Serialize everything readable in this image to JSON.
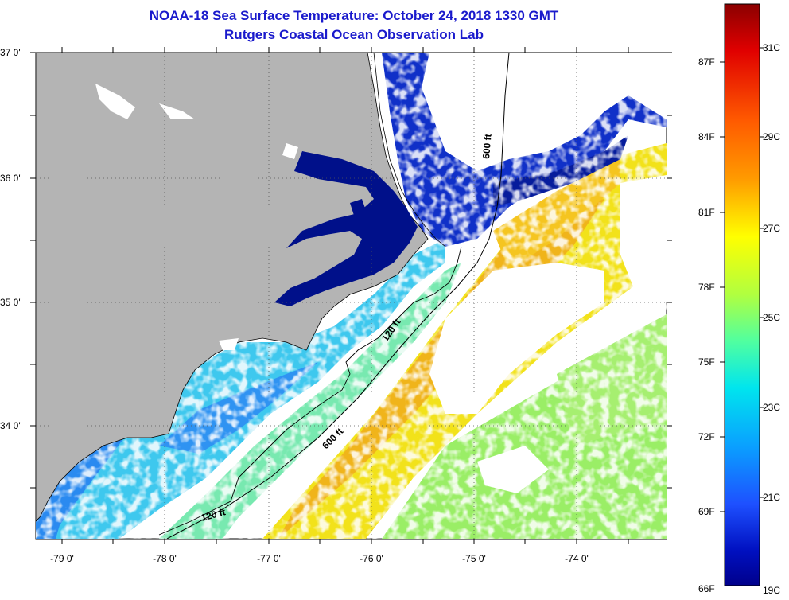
{
  "title_line1": "NOAA-18 Sea Surface Temperature:  October 24, 2018 1330 GMT",
  "title_line2": "Rutgers Coastal Ocean Observation Lab",
  "map": {
    "lat_labels": [
      "37 0'",
      "36 0'",
      "35 0'",
      "34 0'"
    ],
    "lon_labels": [
      "-79 0'",
      "-78 0'",
      "-77 0'",
      "-76 0'",
      "-75 0'",
      "-74 0'"
    ],
    "contours": [
      {
        "label": "600 ft"
      },
      {
        "label": "120 ft"
      },
      {
        "label": "600 ft"
      },
      {
        "label": "120 ft"
      }
    ]
  },
  "colorbar": {
    "fahrenheit_labels": [
      "87F",
      "84F",
      "81F",
      "78F",
      "75F",
      "72F",
      "69F",
      "66F"
    ],
    "celsius_labels": [
      "31C",
      "29C",
      "27C",
      "25C",
      "23C",
      "21C",
      "19C"
    ],
    "colors": [
      "#8b0000",
      "#ff0000",
      "#ff8c00",
      "#ffff00",
      "#9aff5a",
      "#00e5ee",
      "#1e6fff",
      "#0000aa",
      "#00008b"
    ]
  },
  "colors": {
    "land": "#b4b4b4",
    "title": "#1a1acc",
    "sound_water": "#00108a"
  }
}
